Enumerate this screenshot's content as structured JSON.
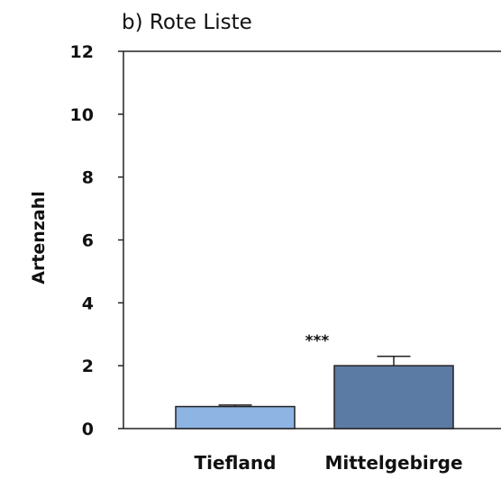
{
  "chart_data": {
    "type": "bar",
    "title": "b) Rote Liste",
    "xlabel": "",
    "ylabel": "Artenzahl",
    "ylim": [
      0,
      12
    ],
    "yticks": [
      "0",
      "2",
      "4",
      "6",
      "8",
      "10",
      "12"
    ],
    "categories": [
      "Tiefland",
      "Mittelgebirge"
    ],
    "values": [
      0.7,
      2.0
    ],
    "error_upper": [
      0.75,
      2.3
    ],
    "bar_colors": [
      "#8db4e2",
      "#5b7ba4"
    ],
    "annotation": "***",
    "grid": false
  }
}
